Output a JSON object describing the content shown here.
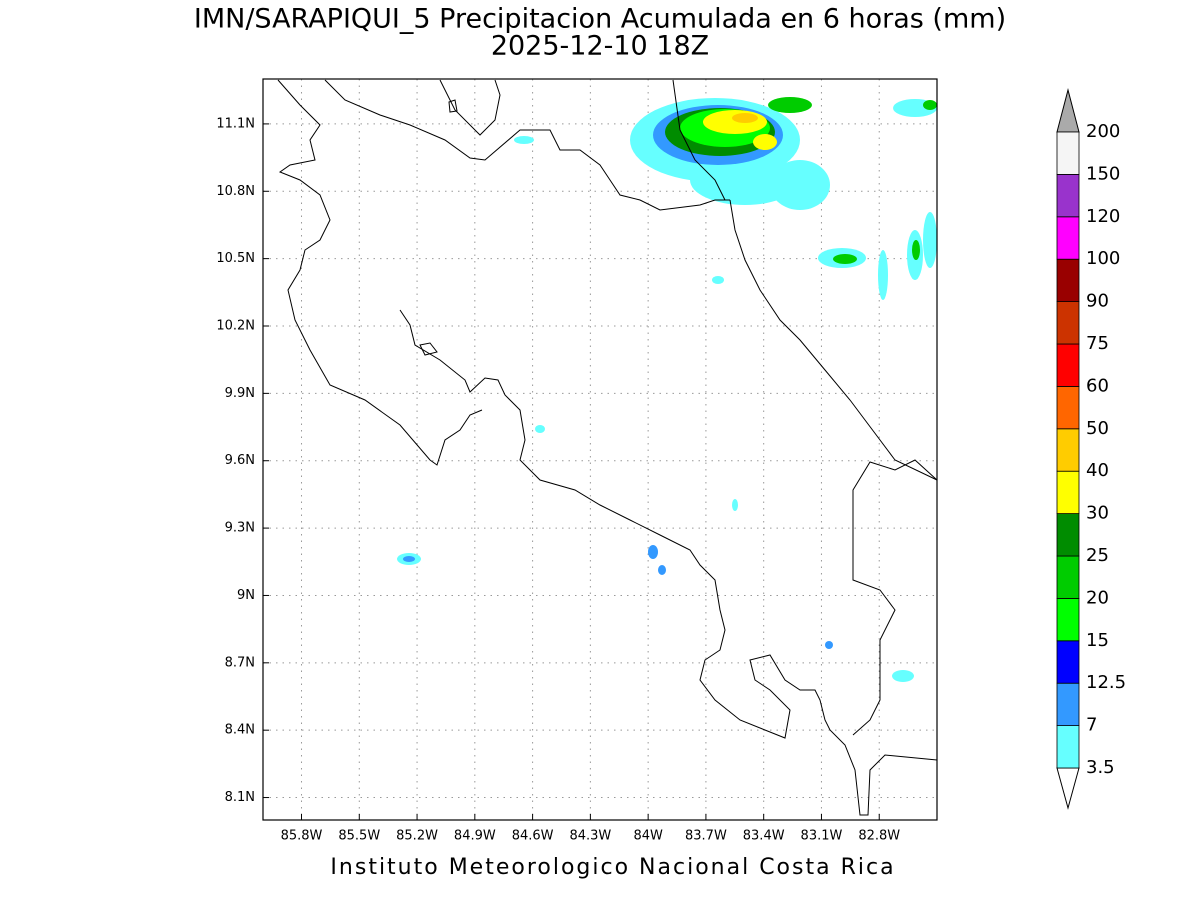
{
  "map": {
    "title": "IMN/SARAPIQUI_5 Precipitacion Acumulada en 6 horas (mm)",
    "subtitle": "2025-12-10 18Z",
    "footer": "Instituto Meteorologico Nacional Costa Rica",
    "xlim": [
      -86.0,
      -82.5
    ],
    "ylim": [
      8.0,
      11.3
    ],
    "grid": true,
    "xticks": [
      {
        "value": -85.8,
        "label": "85.8W"
      },
      {
        "value": -85.5,
        "label": "85.5W"
      },
      {
        "value": -85.2,
        "label": "85.2W"
      },
      {
        "value": -84.9,
        "label": "84.9W"
      },
      {
        "value": -84.6,
        "label": "84.6W"
      },
      {
        "value": -84.3,
        "label": "84.3W"
      },
      {
        "value": -84.0,
        "label": "84W"
      },
      {
        "value": -83.7,
        "label": "83.7W"
      },
      {
        "value": -83.4,
        "label": "83.4W"
      },
      {
        "value": -83.1,
        "label": "83.1W"
      },
      {
        "value": -82.8,
        "label": "82.8W"
      }
    ],
    "yticks": [
      {
        "value": 8.1,
        "label": "8.1N"
      },
      {
        "value": 8.4,
        "label": "8.4N"
      },
      {
        "value": 8.7,
        "label": "8.7N"
      },
      {
        "value": 9.0,
        "label": "9N"
      },
      {
        "value": 9.3,
        "label": "9.3N"
      },
      {
        "value": 9.6,
        "label": "9.6N"
      },
      {
        "value": 9.9,
        "label": "9.9N"
      },
      {
        "value": 10.2,
        "label": "10.2N"
      },
      {
        "value": 10.5,
        "label": "10.5N"
      },
      {
        "value": 10.8,
        "label": "10.8N"
      },
      {
        "value": 11.1,
        "label": "11.1N"
      }
    ],
    "colorbar": {
      "levels": [
        3.5,
        7,
        12.5,
        15,
        20,
        25,
        30,
        40,
        50,
        60,
        75,
        90,
        100,
        120,
        150,
        200
      ],
      "colors": [
        "#66ffff",
        "#3399ff",
        "#0000ff",
        "#00ff00",
        "#00cc00",
        "#008c00",
        "#ffff00",
        "#ffcc00",
        "#ff6600",
        "#ff0000",
        "#cc3300",
        "#990000",
        "#ff00ff",
        "#9933cc",
        "#f5f5f5"
      ],
      "under_color": "#ffffff",
      "over_color": "#aaaaaa"
    }
  }
}
